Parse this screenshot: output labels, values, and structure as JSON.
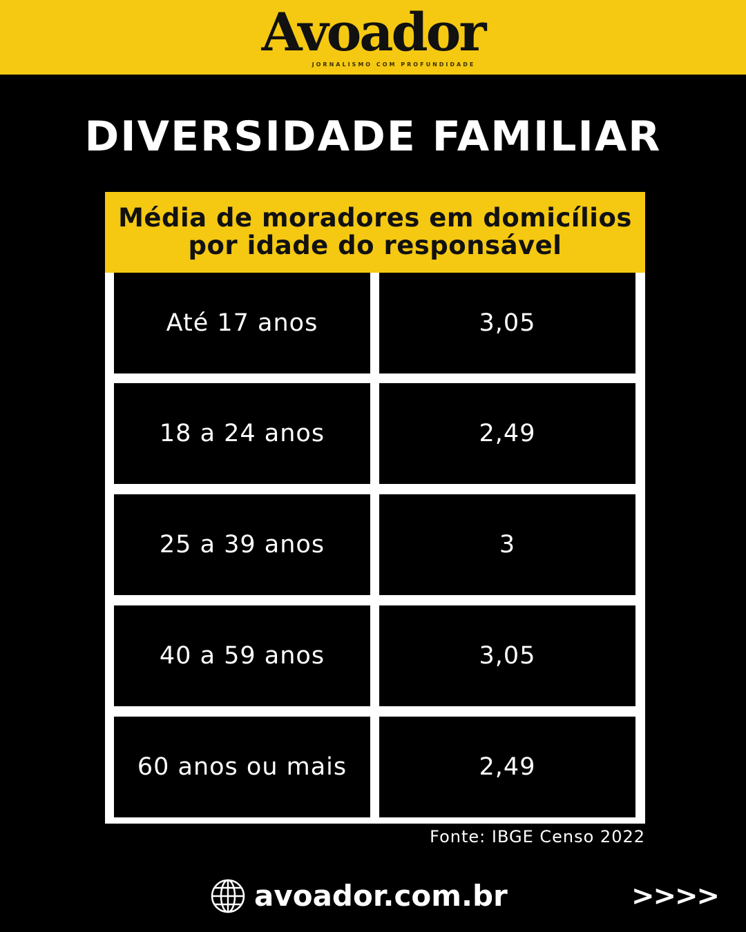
{
  "brand": {
    "logo": "Avoador",
    "tagline": "JORNALISMO COM PROFUNDIDADE",
    "accent": "#F5C812"
  },
  "title": "DIVERSIDADE FAMILIAR",
  "chart_data": {
    "type": "table",
    "title": "Média de moradores em domicílios por idade do responsável",
    "rows": [
      {
        "label": "Até 17 anos",
        "value": "3,05"
      },
      {
        "label": "18 a 24 anos",
        "value": "2,49"
      },
      {
        "label": "25 a 39 anos",
        "value": "3"
      },
      {
        "label": "40 a 59 anos",
        "value": "3,05"
      },
      {
        "label": "60 anos ou mais",
        "value": "2,49"
      }
    ]
  },
  "source": "Fonte: IBGE Censo 2022",
  "footer": {
    "site": "avoador.com.br",
    "icon": "globe-icon",
    "next": ">>>>"
  }
}
